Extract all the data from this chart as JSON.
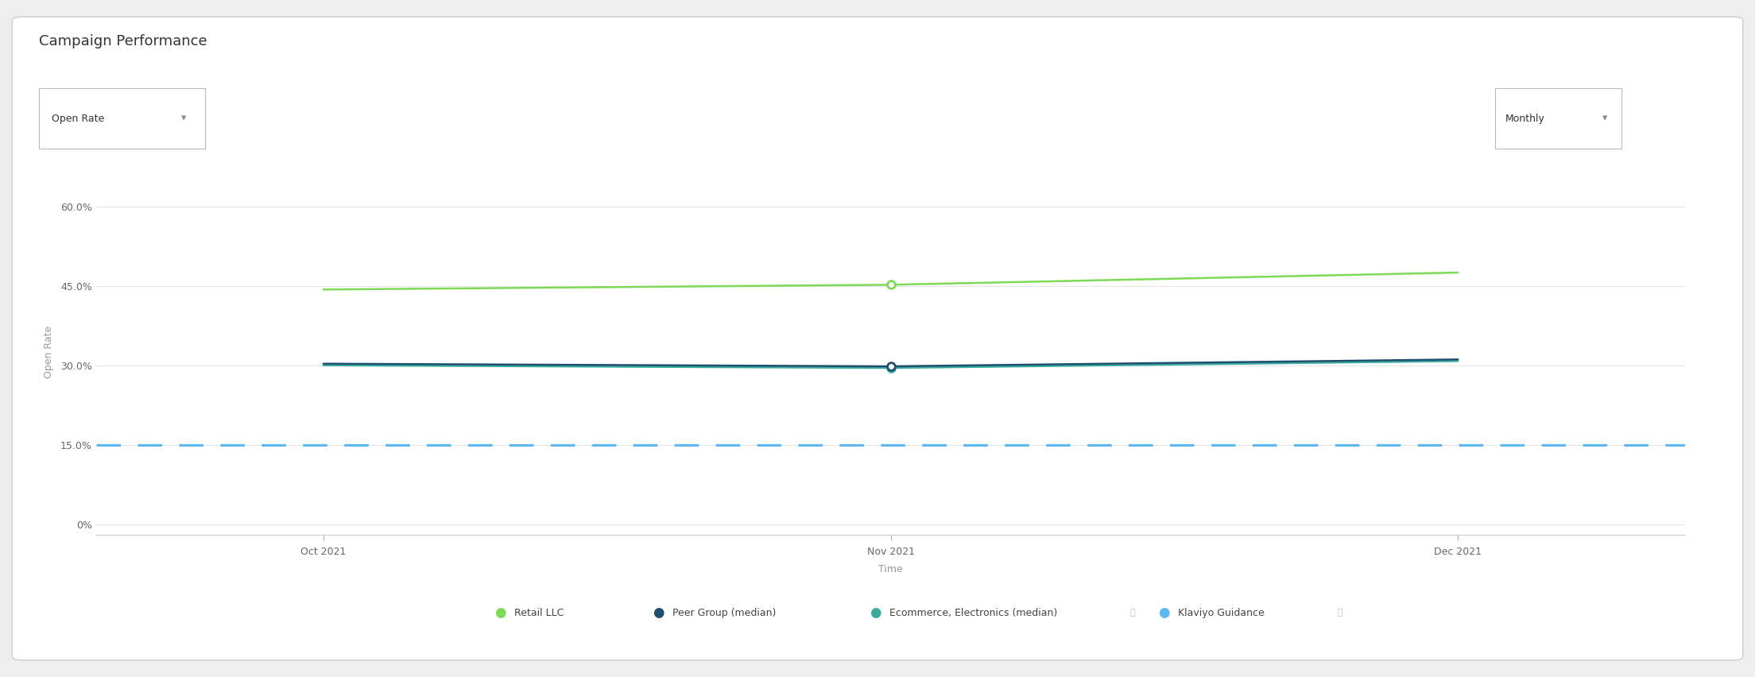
{
  "title": "Campaign Performance",
  "dropdown_label": "Open Rate",
  "dropdown_right": "Monthly",
  "xlabel": "Time",
  "ylabel": "Open Rate",
  "x_labels": [
    "Oct 2021",
    "Nov 2021",
    "Dec 2021"
  ],
  "x_values": [
    0,
    1,
    2
  ],
  "retail_llc": [
    0.443,
    0.452,
    0.475
  ],
  "peer_group": [
    0.303,
    0.298,
    0.311
  ],
  "ecommerce": [
    0.3,
    0.295,
    0.308
  ],
  "klaviyo_guidance": 0.15,
  "retail_color": "#7ed957",
  "peer_group_color": "#1f4e6e",
  "ecommerce_color": "#3aada0",
  "klaviyo_color": "#5bb8f5",
  "yticks": [
    0.0,
    0.15,
    0.3,
    0.45,
    0.6
  ],
  "ytick_labels": [
    "0%",
    "15.0%",
    "30.0%",
    "45.0%",
    "60.0%"
  ],
  "ylim": [
    -0.02,
    0.67
  ],
  "title_fontsize": 13,
  "axis_label_fontsize": 9,
  "tick_fontsize": 9,
  "legend_fontsize": 9,
  "grid_color": "#e5e5e5"
}
